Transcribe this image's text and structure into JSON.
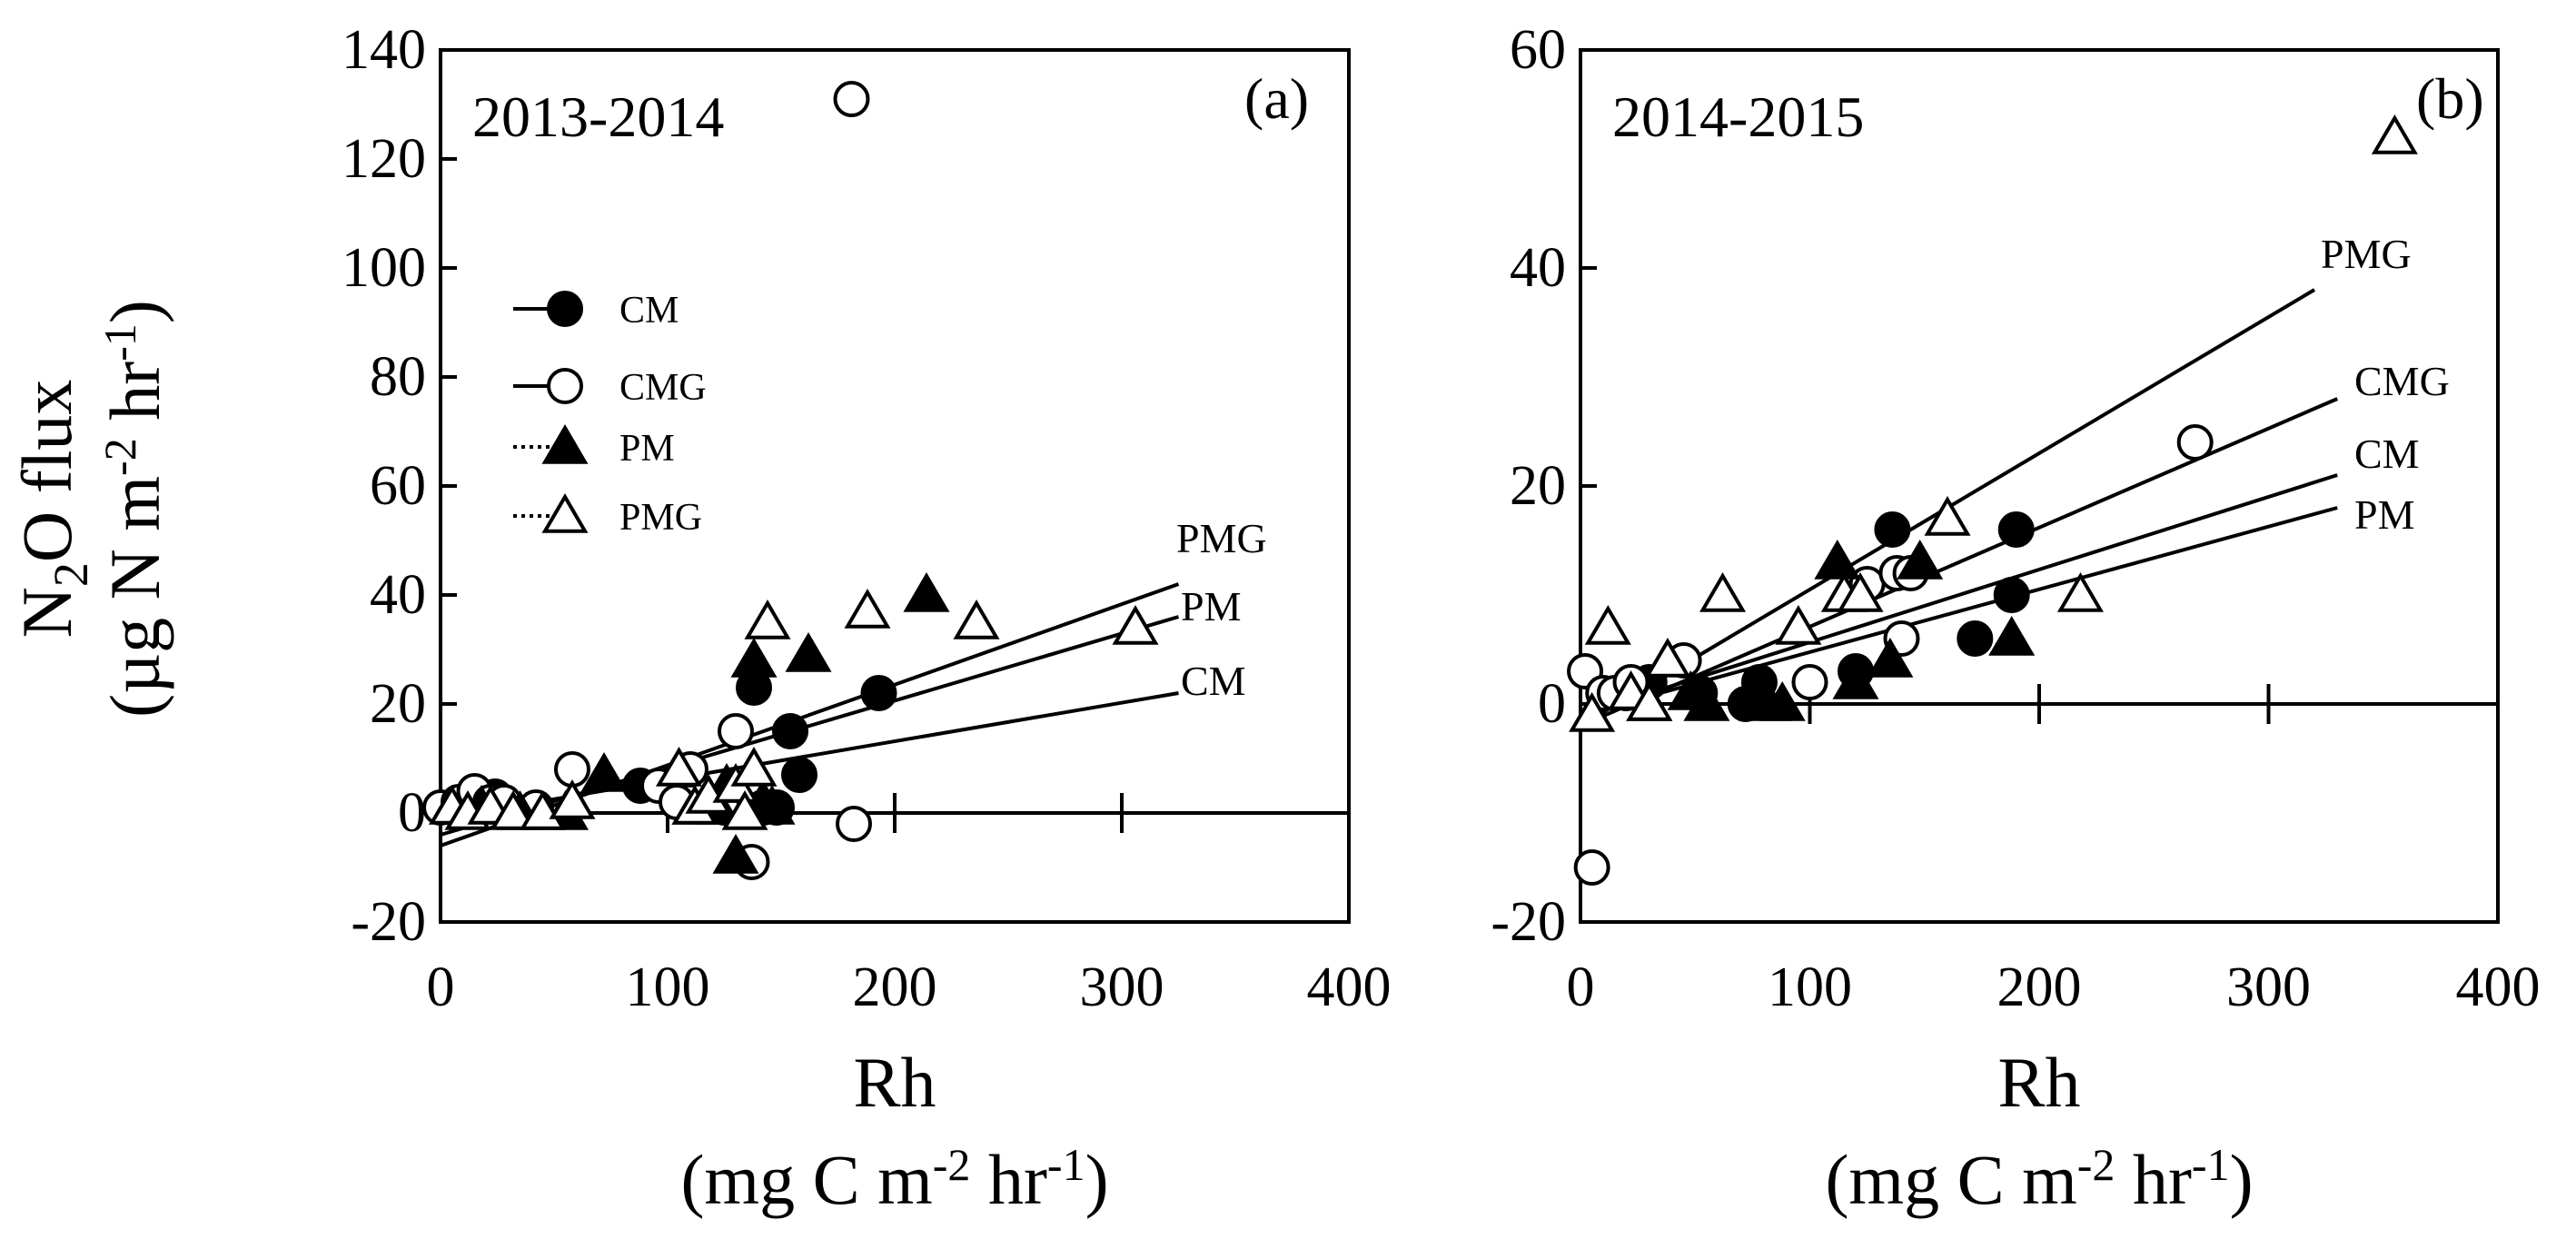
{
  "figure": {
    "y_label_line1": "N",
    "y_label_line1_sub": "2",
    "y_label_line1_rest": "O flux",
    "y_label_line2_a": "(µg N m",
    "y_label_line2_sup1": "-2",
    "y_label_line2_b": " hr",
    "y_label_line2_sup2": "-1",
    "y_label_line2_c": ")"
  },
  "chart_data": [
    {
      "type": "scatter",
      "panel": "(a)",
      "period": "2013-2014",
      "xlabel": "Rh",
      "xunits_a": "(mg C m",
      "xunits_sup1": "-2",
      "xunits_b": " hr",
      "xunits_sup2": "-1",
      "xunits_c": ")",
      "xlim": [
        0,
        400
      ],
      "ylim": [
        -20,
        140
      ],
      "xticks": [
        "0",
        "100",
        "200",
        "300",
        "400"
      ],
      "yticks": [
        "-20",
        "0",
        "20",
        "40",
        "60",
        "80",
        "100",
        "120",
        "140"
      ],
      "legend": [
        {
          "label": "CM",
          "marker": "circle",
          "filled": true,
          "line": "solid"
        },
        {
          "label": "CMG",
          "marker": "circle",
          "filled": false,
          "line": "solid"
        },
        {
          "label": "PM",
          "marker": "triangle",
          "filled": true,
          "line": "dotted"
        },
        {
          "label": "PMG",
          "marker": "triangle",
          "filled": false,
          "line": "dotted"
        }
      ],
      "series": [
        {
          "name": "CM",
          "marker": "circle",
          "filled": true,
          "points": [
            [
              5,
              1
            ],
            [
              12,
              2
            ],
            [
              18,
              2
            ],
            [
              24,
              3
            ],
            [
              30,
              1
            ],
            [
              88,
              5
            ],
            [
              98,
              5
            ],
            [
              125,
              1
            ],
            [
              138,
              23
            ],
            [
              142,
              1
            ],
            [
              148,
              1
            ],
            [
              154,
              15
            ],
            [
              158,
              7
            ],
            [
              193,
              22
            ]
          ]
        },
        {
          "name": "CMG",
          "marker": "circle",
          "filled": false,
          "points": [
            [
              0,
              1
            ],
            [
              8,
              2
            ],
            [
              15,
              4
            ],
            [
              22,
              2
            ],
            [
              28,
              2
            ],
            [
              42,
              1
            ],
            [
              58,
              8
            ],
            [
              96,
              5
            ],
            [
              104,
              2
            ],
            [
              110,
              8
            ],
            [
              124,
              2
            ],
            [
              130,
              15
            ],
            [
              137,
              -9
            ],
            [
              182,
              -2
            ],
            [
              181,
              131
            ]
          ]
        },
        {
          "name": "PM",
          "marker": "triangle",
          "filled": true,
          "points": [
            [
              18,
              1
            ],
            [
              35,
              0
            ],
            [
              55,
              0
            ],
            [
              72,
              7
            ],
            [
              112,
              1
            ],
            [
              122,
              1
            ],
            [
              126,
              5
            ],
            [
              130,
              -8
            ],
            [
              138,
              28
            ],
            [
              142,
              2
            ],
            [
              146,
              1
            ],
            [
              162,
              29
            ],
            [
              214,
              40
            ]
          ]
        },
        {
          "name": "PMG",
          "marker": "triangle",
          "filled": false,
          "points": [
            [
              5,
              1
            ],
            [
              12,
              0
            ],
            [
              22,
              1
            ],
            [
              32,
              0
            ],
            [
              45,
              0
            ],
            [
              58,
              2
            ],
            [
              105,
              8
            ],
            [
              112,
              1
            ],
            [
              118,
              3
            ],
            [
              130,
              5
            ],
            [
              134,
              0
            ],
            [
              138,
              8
            ],
            [
              144,
              35
            ],
            [
              188,
              37
            ],
            [
              236,
              35
            ],
            [
              306,
              34
            ]
          ]
        }
      ],
      "fit_lines": [
        {
          "label": "PMG",
          "x": [
            0,
            325
          ],
          "y": [
            -6,
            42
          ]
        },
        {
          "label": "PM",
          "x": [
            0,
            325
          ],
          "y": [
            -4,
            36
          ]
        },
        {
          "label": "CM",
          "x": [
            0,
            325
          ],
          "y": [
            -1,
            22
          ]
        }
      ]
    },
    {
      "type": "scatter",
      "panel": "(b)",
      "period": "2014-2015",
      "xlabel": "Rh",
      "xunits_a": "(mg C m",
      "xunits_sup1": "-2",
      "xunits_b": " hr",
      "xunits_sup2": "-1",
      "xunits_c": ")",
      "xlim": [
        0,
        400
      ],
      "ylim": [
        -20,
        60
      ],
      "xticks": [
        "0",
        "100",
        "200",
        "300",
        "400"
      ],
      "yticks": [
        "-20",
        "0",
        "20",
        "40",
        "60"
      ],
      "series": [
        {
          "name": "CM",
          "marker": "circle",
          "filled": true,
          "points": [
            [
              20,
              1
            ],
            [
              25,
              1
            ],
            [
              30,
              2
            ],
            [
              52,
              1
            ],
            [
              72,
              0
            ],
            [
              78,
              2
            ],
            [
              120,
              3
            ],
            [
              136,
              16
            ],
            [
              172,
              6
            ],
            [
              188,
              10
            ],
            [
              190,
              16
            ]
          ]
        },
        {
          "name": "CMG",
          "marker": "circle",
          "filled": false,
          "points": [
            [
              2,
              3
            ],
            [
              5,
              -15
            ],
            [
              10,
              1
            ],
            [
              15,
              1
            ],
            [
              22,
              2
            ],
            [
              45,
              4
            ],
            [
              100,
              2
            ],
            [
              125,
              11
            ],
            [
              138,
              12
            ],
            [
              140,
              6
            ],
            [
              144,
              12
            ],
            [
              268,
              24
            ]
          ]
        },
        {
          "name": "PM",
          "marker": "triangle",
          "filled": true,
          "points": [
            [
              30,
              0
            ],
            [
              48,
              1
            ],
            [
              55,
              0
            ],
            [
              82,
              0
            ],
            [
              88,
              0
            ],
            [
              112,
              13
            ],
            [
              120,
              2
            ],
            [
              135,
              4
            ],
            [
              148,
              13
            ],
            [
              188,
              6
            ]
          ]
        },
        {
          "name": "PMG",
          "marker": "triangle",
          "filled": false,
          "points": [
            [
              5,
              -1
            ],
            [
              12,
              7
            ],
            [
              22,
              1
            ],
            [
              30,
              0
            ],
            [
              38,
              4
            ],
            [
              62,
              10
            ],
            [
              95,
              7
            ],
            [
              115,
              10
            ],
            [
              122,
              10
            ],
            [
              160,
              17
            ],
            [
              218,
              10
            ],
            [
              355,
              52
            ]
          ]
        }
      ],
      "fit_lines": [
        {
          "label": "PMG",
          "x": [
            0,
            320
          ],
          "y": [
            -2,
            38
          ]
        },
        {
          "label": "CMG",
          "x": [
            0,
            330
          ],
          "y": [
            -2,
            28
          ]
        },
        {
          "label": "CM",
          "x": [
            0,
            330
          ],
          "y": [
            -1,
            21
          ]
        },
        {
          "label": "PM",
          "x": [
            0,
            330
          ],
          "y": [
            -1,
            18
          ]
        }
      ]
    }
  ]
}
